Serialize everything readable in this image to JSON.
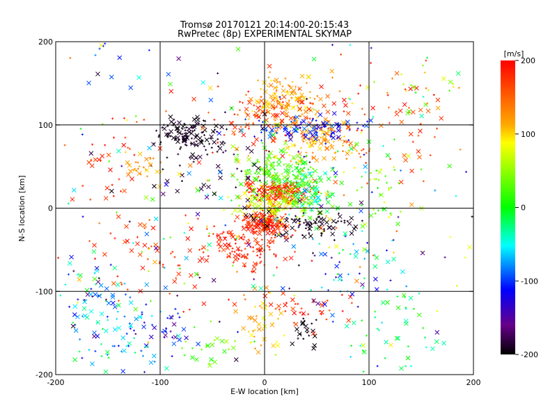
{
  "chart_data": {
    "type": "scatter",
    "title": "Tromsø 20170121 20:14:00-20:15:43",
    "subtitle": "RwPretec (8p) EXPERIMENTAL SKYMAP",
    "xlabel": "E-W location [km]",
    "ylabel": "N-S location [km]",
    "xlim": [
      -200,
      200
    ],
    "ylim": [
      -200,
      200
    ],
    "x_ticks": [
      -200,
      -100,
      0,
      100,
      200
    ],
    "y_ticks": [
      -200,
      -100,
      0,
      100,
      200
    ],
    "grid": true,
    "colorbar": {
      "label": "[m/s]",
      "range": [
        -200,
        200
      ],
      "ticks": [
        200,
        100,
        0,
        -100,
        -200
      ]
    },
    "markers": [
      "x",
      "+"
    ],
    "clusters": [
      {
        "cx": 15,
        "cy": 20,
        "sx": 15,
        "sy": 8,
        "n": 200,
        "vmin": 150,
        "vmax": 200
      },
      {
        "cx": 0,
        "cy": -18,
        "sx": 10,
        "sy": 6,
        "n": 150,
        "vmin": 160,
        "vmax": 200
      },
      {
        "cx": -18,
        "cy": -45,
        "sx": 22,
        "sy": 15,
        "n": 130,
        "vmin": 160,
        "vmax": 200
      },
      {
        "cx": 40,
        "cy": 15,
        "sx": 14,
        "sy": 12,
        "n": 120,
        "vmin": -60,
        "vmax": 40
      },
      {
        "cx": -75,
        "cy": 88,
        "sx": 15,
        "sy": 8,
        "n": 100,
        "vmin": -200,
        "vmax": -185
      },
      {
        "cx": 15,
        "cy": 130,
        "sx": 18,
        "sy": 14,
        "n": 120,
        "vmin": 90,
        "vmax": 140
      },
      {
        "cx": 10,
        "cy": 110,
        "sx": 30,
        "sy": 18,
        "n": 130,
        "vmin": 140,
        "vmax": 200
      },
      {
        "cx": 55,
        "cy": 80,
        "sx": 18,
        "sy": 14,
        "n": 100,
        "vmin": 90,
        "vmax": 140
      },
      {
        "cx": 40,
        "cy": 95,
        "sx": 25,
        "sy": 8,
        "n": 90,
        "vmin": -140,
        "vmax": -80
      },
      {
        "cx": 15,
        "cy": 45,
        "sx": 20,
        "sy": 15,
        "n": 150,
        "vmin": -10,
        "vmax": 60
      },
      {
        "cx": 10,
        "cy": 5,
        "sx": 20,
        "sy": 10,
        "n": 110,
        "vmin": 40,
        "vmax": 110
      },
      {
        "cx": 45,
        "cy": -20,
        "sx": 25,
        "sy": 8,
        "n": 80,
        "vmin": -200,
        "vmax": -185
      },
      {
        "cx": -55,
        "cy": 60,
        "sx": 35,
        "sy": 25,
        "n": 70,
        "vmin": -200,
        "vmax": -180
      },
      {
        "cx": -115,
        "cy": 50,
        "sx": 10,
        "sy": 8,
        "n": 30,
        "vmin": 90,
        "vmax": 140
      },
      {
        "cx": -150,
        "cy": -150,
        "sx": 30,
        "sy": 30,
        "n": 90,
        "vmin": -120,
        "vmax": 0
      },
      {
        "cx": -165,
        "cy": -100,
        "sx": 20,
        "sy": 20,
        "n": 40,
        "vmin": -200,
        "vmax": -20
      },
      {
        "cx": -110,
        "cy": -55,
        "sx": 25,
        "sy": 25,
        "n": 50,
        "vmin": 150,
        "vmax": 200
      },
      {
        "cx": -55,
        "cy": -165,
        "sx": 15,
        "sy": 15,
        "n": 25,
        "vmin": 0,
        "vmax": 60
      },
      {
        "cx": -90,
        "cy": -150,
        "sx": 15,
        "sy": 20,
        "n": 30,
        "vmin": -180,
        "vmax": -80
      },
      {
        "cx": 30,
        "cy": -120,
        "sx": 30,
        "sy": 10,
        "n": 40,
        "vmin": 150,
        "vmax": 200
      },
      {
        "cx": -5,
        "cy": -140,
        "sx": 10,
        "sy": 20,
        "n": 40,
        "vmin": 80,
        "vmax": 130
      },
      {
        "cx": 40,
        "cy": -150,
        "sx": 8,
        "sy": 10,
        "n": 20,
        "vmin": -200,
        "vmax": -190
      },
      {
        "cx": 85,
        "cy": -70,
        "sx": 25,
        "sy": 25,
        "n": 50,
        "vmin": -150,
        "vmax": 0
      },
      {
        "cx": 125,
        "cy": -150,
        "sx": 20,
        "sy": 30,
        "n": 40,
        "vmin": -60,
        "vmax": 20
      },
      {
        "cx": 120,
        "cy": 100,
        "sx": 30,
        "sy": 40,
        "n": 60,
        "vmin": 140,
        "vmax": 200
      },
      {
        "cx": 150,
        "cy": 140,
        "sx": 25,
        "sy": 15,
        "n": 30,
        "vmin": -40,
        "vmax": 140
      },
      {
        "cx": 110,
        "cy": 20,
        "sx": 15,
        "sy": 25,
        "n": 40,
        "vmin": 0,
        "vmax": 80
      },
      {
        "cx": 0,
        "cy": 0,
        "sx": 110,
        "sy": 110,
        "n": 320,
        "vmin": -200,
        "vmax": 200
      },
      {
        "cx": -150,
        "cy": 60,
        "sx": 25,
        "sy": 25,
        "n": 30,
        "vmin": 150,
        "vmax": 200
      },
      {
        "cx": -145,
        "cy": 190,
        "sx": 15,
        "sy": 6,
        "n": 6,
        "vmin": -110,
        "vmax": -60
      }
    ]
  }
}
